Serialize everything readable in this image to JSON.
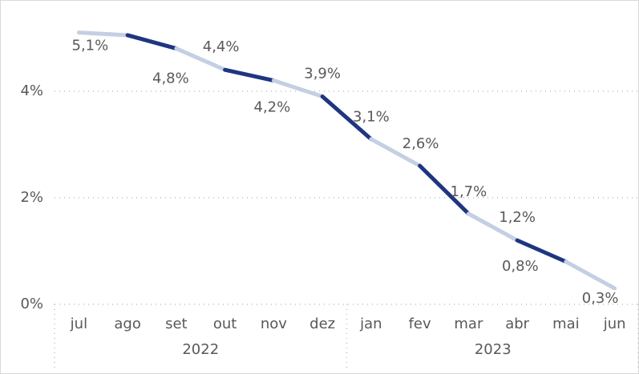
{
  "chart_data": {
    "type": "line",
    "categories": [
      "jul",
      "ago",
      "set",
      "out",
      "nov",
      "dez",
      "jan",
      "fev",
      "mar",
      "abr",
      "mai",
      "jun"
    ],
    "groups": [
      "2022",
      "2023"
    ],
    "series": [
      {
        "colors": [
          "#c5cfe3",
          "#1f3580"
        ],
        "values": [
          5.1,
          5.05,
          4.8,
          4.4,
          4.2,
          3.9,
          3.1,
          2.6,
          1.7,
          1.2,
          0.8,
          0.3
        ],
        "value_labels": [
          "5,1%",
          null,
          "4,8%",
          "4,4%",
          "4,2%",
          "3,9%",
          "3,1%",
          "2,6%",
          "1,7%",
          "1,2%",
          "0,8%",
          "0,3%"
        ]
      }
    ],
    "ylim": [
      0,
      5.5
    ],
    "yticks": [
      {
        "value": 0,
        "label": "0%"
      },
      {
        "value": 2,
        "label": "2%"
      },
      {
        "value": 4,
        "label": "4%"
      }
    ],
    "grid": true
  }
}
